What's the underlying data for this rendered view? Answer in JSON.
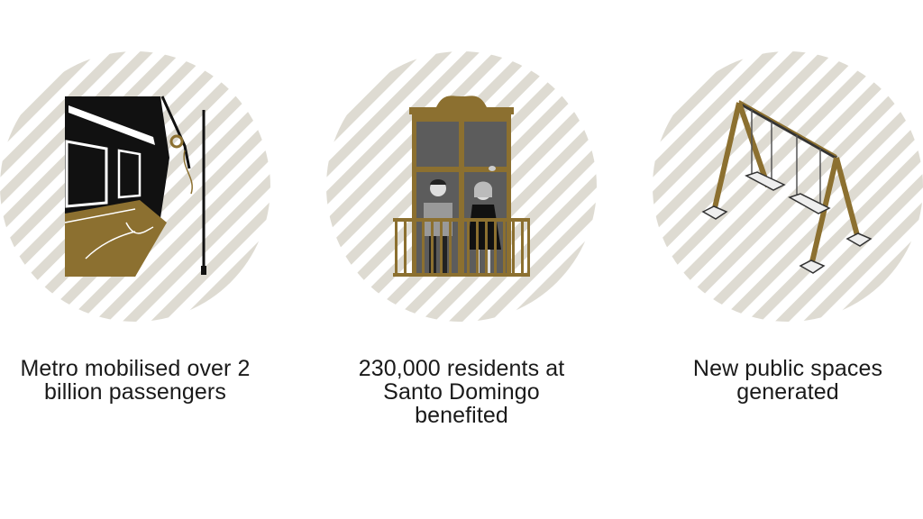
{
  "colors": {
    "stripe": "#dedbd2",
    "gold": "#8c7030",
    "dark": "#111111",
    "gray": "#5c5c5c"
  },
  "panels": [
    {
      "icon": "metro-interior-icon",
      "lines": [
        "Metro mobilised over 2",
        "billion passengers"
      ]
    },
    {
      "icon": "balcony-residents-icon",
      "lines": [
        "230,000 residents at",
        "Santo Domingo",
        "benefited"
      ]
    },
    {
      "icon": "swing-set-icon",
      "lines": [
        "New public spaces",
        "generated"
      ]
    }
  ]
}
